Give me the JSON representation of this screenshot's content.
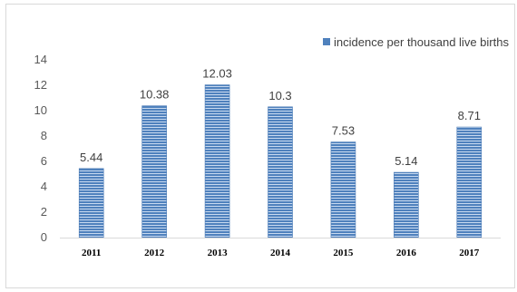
{
  "chart_data": {
    "type": "bar",
    "title": "",
    "xlabel": "",
    "ylabel": "",
    "categories": [
      "2011",
      "2012",
      "2013",
      "2014",
      "2015",
      "2016",
      "2017"
    ],
    "series": [
      {
        "name": "incidence per thousand live births",
        "values": [
          5.44,
          10.38,
          12.03,
          10.3,
          7.53,
          5.14,
          8.71
        ],
        "labels": [
          "5.44",
          "10.38",
          "12.03",
          "10.3",
          "7.53",
          "5.14",
          "8.71"
        ],
        "color": "#4f81bd"
      }
    ],
    "ylim": [
      0,
      14
    ],
    "yticks": [
      "0",
      "2",
      "4",
      "6",
      "8",
      "10",
      "12",
      "14"
    ],
    "grid": false,
    "legend_position": "top-right"
  }
}
